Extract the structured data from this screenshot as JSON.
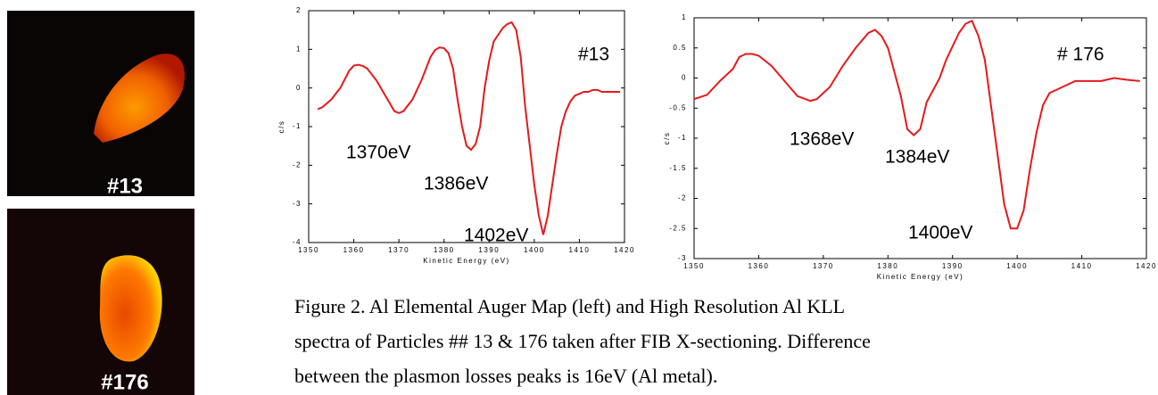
{
  "figure": {
    "images": [
      {
        "label": "#13"
      },
      {
        "label": "#176"
      }
    ],
    "caption": [
      "Figure 2.  Al Elemental Auger Map (left) and High Resolution Al KLL",
      "spectra of Particles ## 13 & 176 taken after FIB X-sectioning. Difference",
      "between the plasmon losses peaks is 16eV (Al metal)."
    ]
  },
  "chart_data": [
    {
      "type": "line",
      "xlabel": "Kinetic Energy (eV)",
      "ylabel": "c/s",
      "x": [
        1352,
        1353,
        1355,
        1357,
        1359,
        1360,
        1361,
        1362,
        1363,
        1365,
        1367,
        1369,
        1370,
        1371,
        1373,
        1375,
        1376,
        1377,
        1378,
        1379,
        1380,
        1381,
        1382,
        1383,
        1384,
        1385,
        1386,
        1387,
        1388,
        1389,
        1390,
        1391,
        1393,
        1394,
        1395,
        1396,
        1397,
        1398,
        1399,
        1400,
        1401,
        1402,
        1403,
        1404,
        1405,
        1406,
        1407,
        1408,
        1409,
        1410,
        1411,
        1412,
        1413,
        1414,
        1415,
        1417,
        1419
      ],
      "series": [
        {
          "color": "#e41a1c",
          "values": [
            -0.55,
            -0.5,
            -0.3,
            0.0,
            0.45,
            0.58,
            0.6,
            0.57,
            0.5,
            0.2,
            -0.2,
            -0.6,
            -0.65,
            -0.6,
            -0.3,
            0.2,
            0.5,
            0.8,
            0.98,
            1.05,
            1.03,
            0.9,
            0.5,
            -0.3,
            -1.0,
            -1.5,
            -1.6,
            -1.45,
            -1.0,
            0.0,
            0.7,
            1.2,
            1.55,
            1.65,
            1.7,
            1.5,
            0.8,
            -0.5,
            -1.5,
            -2.5,
            -3.3,
            -3.8,
            -3.3,
            -2.5,
            -1.7,
            -1.0,
            -0.6,
            -0.35,
            -0.2,
            -0.15,
            -0.1,
            -0.1,
            -0.05,
            -0.05,
            -0.1,
            -0.1,
            -0.1
          ]
        }
      ],
      "xlim": [
        1350,
        1420
      ],
      "xticks": [
        1350,
        1360,
        1370,
        1380,
        1390,
        1400,
        1410,
        1420
      ],
      "ylim": [
        -4,
        2
      ],
      "yticks": [
        -4,
        -3,
        -2,
        -1,
        0,
        1,
        2
      ],
      "annotations": [
        "#13",
        "1370eV",
        "1386eV",
        "1402eV"
      ]
    },
    {
      "type": "line",
      "xlabel": "Kinetic Energy (eV)",
      "ylabel": "c/s",
      "x": [
        1350,
        1352,
        1354,
        1356,
        1357,
        1358,
        1359,
        1360,
        1362,
        1364,
        1366,
        1368,
        1369,
        1371,
        1373,
        1375,
        1377,
        1378,
        1379,
        1380,
        1381,
        1382,
        1383,
        1384,
        1385,
        1386,
        1388,
        1389,
        1391,
        1392,
        1393,
        1394,
        1395,
        1396,
        1397,
        1398,
        1399,
        1400,
        1401,
        1402,
        1403,
        1404,
        1405,
        1407,
        1409,
        1411,
        1413,
        1415,
        1417,
        1419
      ],
      "series": [
        {
          "color": "#e41a1c",
          "values": [
            -0.35,
            -0.28,
            -0.05,
            0.15,
            0.35,
            0.4,
            0.4,
            0.37,
            0.2,
            -0.05,
            -0.3,
            -0.38,
            -0.35,
            -0.15,
            0.2,
            0.5,
            0.75,
            0.8,
            0.7,
            0.5,
            0.1,
            -0.3,
            -0.85,
            -0.95,
            -0.85,
            -0.4,
            0.0,
            0.3,
            0.75,
            0.9,
            0.95,
            0.7,
            0.3,
            -0.5,
            -1.3,
            -2.1,
            -2.5,
            -2.5,
            -2.2,
            -1.5,
            -0.9,
            -0.45,
            -0.25,
            -0.15,
            -0.05,
            -0.05,
            -0.05,
            0.0,
            -0.03,
            -0.05
          ]
        }
      ],
      "xlim": [
        1350,
        1420
      ],
      "xticks": [
        1350,
        1360,
        1370,
        1380,
        1390,
        1400,
        1410,
        1420
      ],
      "ylim": [
        -3,
        1
      ],
      "yticks": [
        -3,
        -2.5,
        -2,
        -1.5,
        -1,
        -0.5,
        0,
        0.5,
        1
      ],
      "annotations": [
        "# 176",
        "1368eV",
        "1384eV",
        "1400eV"
      ]
    }
  ]
}
